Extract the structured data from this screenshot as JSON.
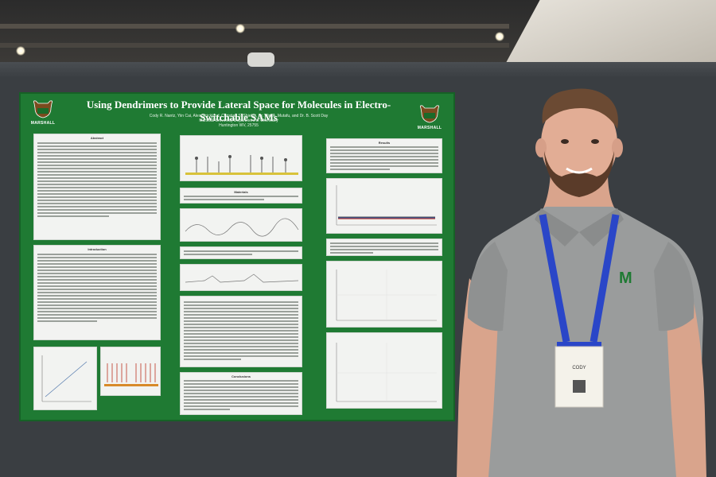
{
  "poster": {
    "title": "Using Dendrimers to Provide Lateral Space for Molecules in Electro-Switchable SAMs",
    "authors": "Cody R. Nantz, Yiin Cai, Alex Strickland, Christian S. Shields, Dr. Mini A. Mutafu, and Dr. B. Scott Day",
    "institution": "Marshall University Department of Chemistry",
    "location": "Huntington WV, 25755",
    "logo_word": "MARSHALL",
    "colors": {
      "background": "#1f7a33",
      "panel": "#f2f3f1",
      "title_text": "#ffffff"
    },
    "sections": {
      "abstract": "Abstract",
      "introduction": "Introduction",
      "materials": "Materials",
      "results": "Results",
      "conclusions": "Conclusions"
    }
  },
  "person": {
    "shirt_logo": "M",
    "shirt_color": "#9a9c9c",
    "lanyard_color": "#2a46c8",
    "badge_name": "CODY"
  },
  "scene": {
    "wall_color": "#3a3e42",
    "icons": [
      "ceiling-light-icon",
      "security-camera-icon",
      "buffalo-logo-icon",
      "m-logo-icon"
    ]
  }
}
